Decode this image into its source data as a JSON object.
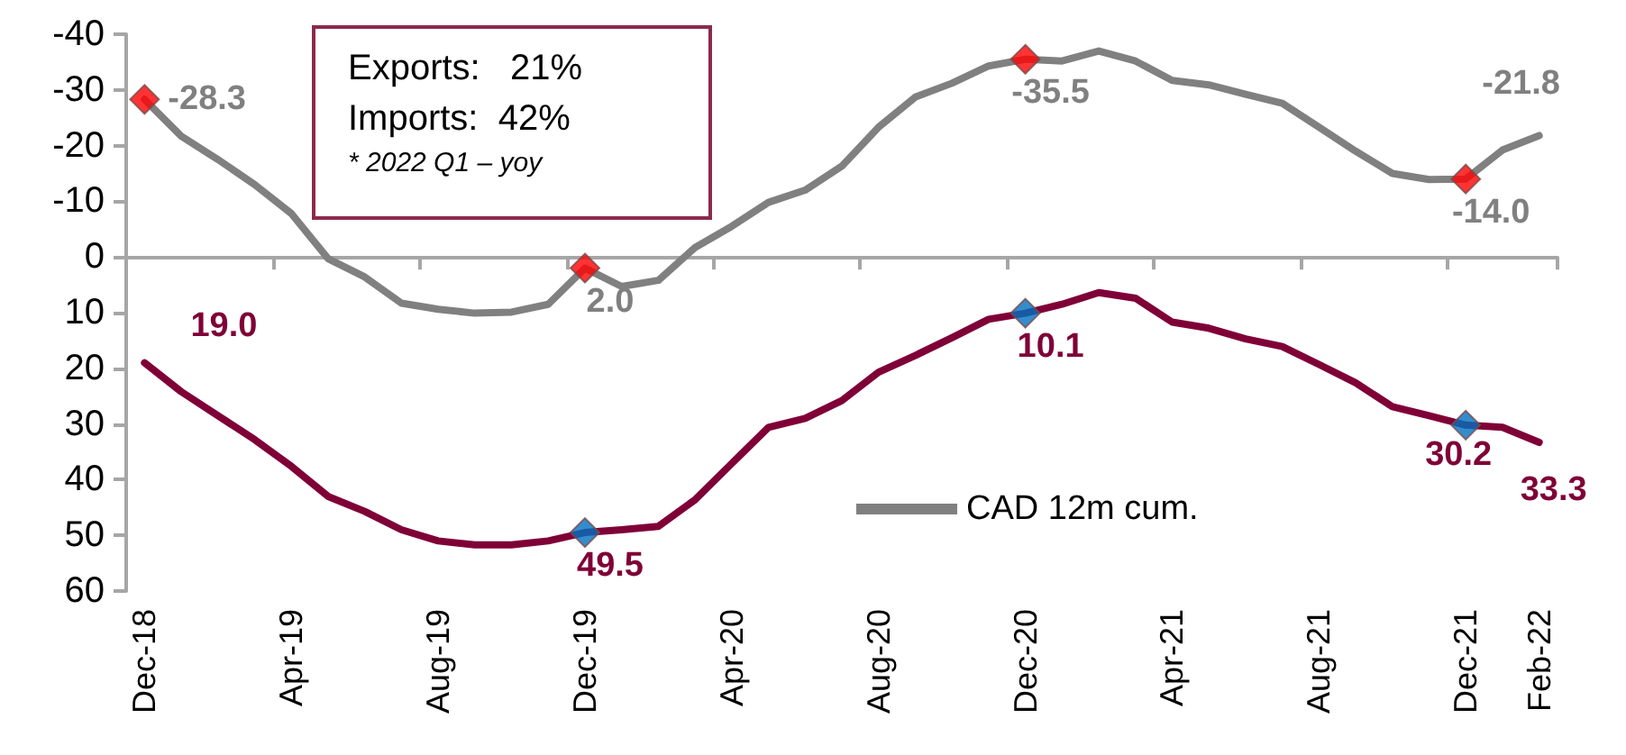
{
  "chart_data": {
    "type": "line",
    "categories": [
      "Dec-18",
      null,
      null,
      null,
      "Apr-19",
      null,
      null,
      null,
      "Aug-19",
      null,
      null,
      null,
      "Dec-19",
      null,
      null,
      null,
      "Apr-20",
      null,
      null,
      null,
      "Aug-20",
      null,
      null,
      null,
      "Dec-20",
      null,
      null,
      null,
      "Apr-21",
      null,
      null,
      null,
      "Aug-21",
      null,
      null,
      null,
      "Dec-21",
      null,
      "Feb-22"
    ],
    "series": [
      {
        "name": "CAD 12m cum.",
        "color": "#808080",
        "values": [
          -28.3,
          -21.7,
          -17.5,
          -13.0,
          -7.8,
          0.3,
          3.6,
          8.3,
          9.4,
          10.1,
          9.9,
          8.5,
          2.0,
          5.3,
          4.2,
          -1.7,
          -5.5,
          -9.8,
          -12.0,
          -16.3,
          -23.3,
          -28.7,
          -31.2,
          -34.3,
          -35.5,
          -35.2,
          -37.0,
          -35.2,
          -31.7,
          -30.9,
          -29.2,
          -27.6,
          -23.3,
          -19.0,
          -15.0,
          -13.9,
          -14.0,
          -19.2,
          -21.8
        ],
        "value_labels": [
          "-28.3",
          null,
          null,
          null,
          null,
          null,
          null,
          null,
          null,
          null,
          null,
          null,
          "2.0",
          null,
          null,
          null,
          null,
          null,
          null,
          null,
          null,
          null,
          null,
          null,
          "-35.5",
          null,
          null,
          null,
          null,
          null,
          null,
          null,
          null,
          null,
          null,
          null,
          "-14.0",
          null,
          "-21.8"
        ]
      },
      {
        "color": "#7f0037",
        "values": [
          19.0,
          24.2,
          28.5,
          32.8,
          37.6,
          43.0,
          45.7,
          49.0,
          51.0,
          51.7,
          51.7,
          51.0,
          49.5,
          49.0,
          48.4,
          43.6,
          37.1,
          30.6,
          29.0,
          25.8,
          20.7,
          17.7,
          14.5,
          11.2,
          10.1,
          8.5,
          6.4,
          7.4,
          11.7,
          12.8,
          14.7,
          16.1,
          19.3,
          22.6,
          26.9,
          28.5,
          30.2,
          30.6,
          33.3
        ],
        "value_labels": [
          "19.0",
          null,
          null,
          null,
          null,
          null,
          null,
          null,
          null,
          null,
          null,
          null,
          "49.5",
          null,
          null,
          null,
          null,
          null,
          null,
          null,
          null,
          null,
          null,
          null,
          "10.1",
          null,
          null,
          null,
          null,
          null,
          null,
          null,
          null,
          null,
          null,
          null,
          "30.2",
          null,
          "33.3"
        ]
      },
      {
        "type": "scatter",
        "marker": "diamond",
        "color": "#ff0000",
        "x": [
          "Dec-18",
          "Dec-19",
          "Dec-20",
          "Dec-21"
        ],
        "values": [
          -28.3,
          2.0,
          -35.5,
          -14.0
        ]
      },
      {
        "type": "scatter",
        "marker": "diamond",
        "color": "#0070c0",
        "x": [
          "Dec-19",
          "Dec-20",
          "Dec-21"
        ],
        "values": [
          49.5,
          10.1,
          30.2
        ]
      }
    ],
    "ylim": [
      60,
      -40
    ],
    "yticks": [
      -40,
      -30,
      -20,
      -10,
      0,
      10,
      20,
      30,
      40,
      50,
      60
    ],
    "line_style": "solid",
    "marker": "none",
    "legend": "bottom right",
    "annotations": [
      "Exports:   21%",
      "Imports:  42%",
      "* 2022 Q1 – yoy"
    ]
  }
}
